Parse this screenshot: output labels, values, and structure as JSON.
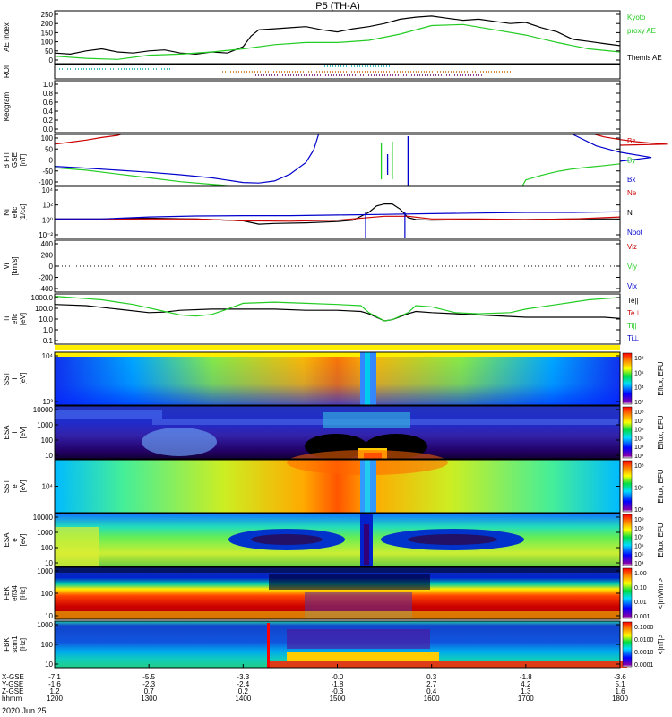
{
  "title": "P5 (TH-A)",
  "date_label": "2020 Jun 25",
  "colors": {
    "black": "#000000",
    "green": "#22cc22",
    "red": "#cc0000",
    "blue": "#0000cc"
  },
  "time_axis": {
    "row_labels": [
      "X-GSE",
      "Y-GSE",
      "Z-GSE",
      "hhmm"
    ],
    "ticks": [
      {
        "t": 1200,
        "values": [
          "-7.1",
          "-1.6",
          "1.2",
          "1200"
        ]
      },
      {
        "t": 1300,
        "values": [
          "-5.5",
          "-2.3",
          "0.7",
          "1300"
        ]
      },
      {
        "t": 1400,
        "values": [
          "-3.3",
          "-2.4",
          "0.2",
          "1400"
        ]
      },
      {
        "t": 1500,
        "values": [
          "-0.0",
          "-1.8",
          "-0.3",
          "1500"
        ]
      },
      {
        "t": 1600,
        "values": [
          "0.3",
          "2.7",
          "0.4",
          "1600"
        ]
      },
      {
        "t": 1700,
        "values": [
          "-1.8",
          "4.2",
          "1.3",
          "1700"
        ]
      },
      {
        "t": 1800,
        "values": [
          "-3.6",
          "5.1",
          "1.6",
          "1800"
        ]
      }
    ]
  },
  "panels": [
    {
      "id": "ae",
      "ylabel": [
        "AE Index"
      ],
      "ticks": [
        "250",
        "200",
        "150",
        "100",
        "50",
        "0"
      ],
      "legend": [
        {
          "text": "Kyoto",
          "color": "green"
        },
        {
          "text": "proxy AE",
          "color": "green"
        },
        {
          "text": ""
        },
        {
          "text": "Themis AE",
          "color": "black"
        }
      ]
    },
    {
      "id": "roi",
      "ylabel": [
        "ROI"
      ],
      "ticks": [],
      "legend": []
    },
    {
      "id": "keogram",
      "ylabel": [
        "Keogram"
      ],
      "ticks": [
        "1.0",
        "0.8",
        "0.6",
        "0.4",
        "0.2",
        "0.0"
      ],
      "legend": []
    },
    {
      "id": "bfit",
      "ylabel": [
        "B FIT",
        "GSE",
        "[nT]"
      ],
      "ticks": [
        "100",
        "50",
        "0",
        "-50",
        "-100"
      ],
      "legend": [
        {
          "text": "Bz",
          "color": "red"
        },
        {
          "text": "By",
          "color": "green"
        },
        {
          "text": "Bx",
          "color": "blue"
        }
      ]
    },
    {
      "id": "ni",
      "ylabel": [
        "Ni",
        "eflc",
        "[1/cc]"
      ],
      "ticks": [
        "10⁴",
        "10²",
        "10⁰",
        "10⁻²"
      ],
      "legend": [
        {
          "text": "Ne",
          "color": "red"
        },
        {
          "text": "Ni",
          "color": "black"
        },
        {
          "text": "Npot",
          "color": "blue"
        }
      ]
    },
    {
      "id": "vi",
      "ylabel": [
        "Vi",
        "[km/s]"
      ],
      "ticks": [
        "400",
        "200",
        "0",
        "-200",
        "-400"
      ],
      "legend": [
        {
          "text": "Viz",
          "color": "red"
        },
        {
          "text": "Viy",
          "color": "green"
        },
        {
          "text": "Vix",
          "color": "blue"
        }
      ]
    },
    {
      "id": "ti",
      "ylabel": [
        "Ti",
        "eflc",
        "[eV]"
      ],
      "ticks": [
        "1000.0",
        "100.0",
        "10.0",
        "1.0",
        "0.1"
      ],
      "legend": [
        {
          "text": "Te||",
          "color": "black"
        },
        {
          "text": "Te⊥",
          "color": "red"
        },
        {
          "text": "Ti||",
          "color": "green"
        },
        {
          "text": "Ti⊥",
          "color": "blue"
        }
      ]
    },
    {
      "id": "sst_i",
      "ylabel": [
        "SST",
        "i",
        "[eV]"
      ],
      "ticks": [
        "10⁴",
        "10³"
      ],
      "cb_label": "Eflux, EFU",
      "cb_ticks": [
        "10⁸",
        "10⁶",
        "10⁴",
        "10²"
      ]
    },
    {
      "id": "esa_i",
      "ylabel": [
        "ESA",
        "i",
        "[eV]"
      ],
      "ticks": [
        "10000",
        "1000",
        "100",
        "10"
      ],
      "cb_label": "Eflux, EFU",
      "cb_ticks": [
        "10⁸",
        "10⁷",
        "10⁶",
        "10⁵",
        "10⁴",
        "10³"
      ]
    },
    {
      "id": "sst_e",
      "ylabel": [
        "SST",
        "e",
        "[eV]"
      ],
      "ticks": [
        "10⁴"
      ],
      "cb_label": "Eflux, EFU",
      "cb_ticks": [
        "10⁸",
        "10⁶",
        "10⁴"
      ]
    },
    {
      "id": "esa_e",
      "ylabel": [
        "ESA",
        "e",
        "[eV]"
      ],
      "ticks": [
        "10000",
        "1000",
        "100",
        "10"
      ],
      "cb_label": "Eflux, EFU",
      "cb_ticks": [
        "10⁹",
        "10⁸",
        "10⁷",
        "10⁶",
        "10⁵",
        "10⁴"
      ]
    },
    {
      "id": "fbk_e",
      "ylabel": [
        "FBK",
        "eff34",
        "[Hz]"
      ],
      "ticks": [
        "1000",
        "100",
        "10"
      ],
      "cb_label": "<|mV/m|>",
      "cb_ticks": [
        "1.00",
        "0.10",
        "0.01",
        "0.001"
      ]
    },
    {
      "id": "fbk_b",
      "ylabel": [
        "FBK",
        "scm1",
        "[Hz]"
      ],
      "ticks": [
        "1000",
        "100",
        "10"
      ],
      "cb_label": "<|nT|>",
      "cb_ticks": [
        "0.1000",
        "0.0100",
        "0.0010",
        "0.0001"
      ]
    }
  ],
  "chart_data": {
    "type": "line",
    "title": "P5 (TH-A)",
    "x_unit": "hhmm (UT, 2020 Jun 25)",
    "xlim": [
      1200,
      1800
    ],
    "series": [
      {
        "panel": "ae",
        "name": "Themis AE",
        "color": "black",
        "ylim": [
          0,
          250
        ],
        "x": [
          1200,
          1210,
          1220,
          1230,
          1240,
          1250,
          1300,
          1310,
          1320,
          1330,
          1340,
          1350,
          1400,
          1405,
          1410,
          1420,
          1430,
          1440,
          1450,
          1500,
          1510,
          1520,
          1530,
          1540,
          1550,
          1600,
          1610,
          1620,
          1630,
          1640,
          1650,
          1700,
          1710,
          1720,
          1730,
          1740,
          1750,
          1800
        ],
        "y": [
          50,
          45,
          60,
          70,
          55,
          50,
          60,
          65,
          50,
          45,
          55,
          50,
          80,
          130,
          160,
          165,
          170,
          175,
          160,
          150,
          165,
          175,
          190,
          210,
          220,
          225,
          215,
          205,
          210,
          200,
          190,
          195,
          170,
          150,
          115,
          105,
          95,
          85
        ]
      },
      {
        "panel": "ae",
        "name": "Kyoto proxy AE",
        "color": "green",
        "ylim": [
          0,
          250
        ],
        "x": [
          1200,
          1220,
          1240,
          1300,
          1320,
          1340,
          1400,
          1420,
          1440,
          1500,
          1520,
          1540,
          1600,
          1620,
          1640,
          1700,
          1720,
          1740,
          1800
        ],
        "y": [
          35,
          25,
          20,
          40,
          45,
          55,
          70,
          90,
          100,
          100,
          110,
          140,
          180,
          185,
          160,
          135,
          100,
          70,
          55
        ]
      },
      {
        "panel": "bfit",
        "name": "Bz",
        "color": "red",
        "ylim": [
          -100,
          100
        ],
        "x": [
          1200,
          1210,
          1220,
          1230,
          1240,
          1242
        ],
        "y": [
          62,
          70,
          78,
          88,
          96,
          100
        ]
      },
      {
        "panel": "bfit",
        "name": "Bz",
        "color": "red",
        "ylim": [
          -100,
          100
        ],
        "x": [
          1744,
          1750,
          1760,
          1770,
          1780,
          1790,
          1800
        ],
        "y": [
          100,
          90,
          80,
          72,
          66,
          62,
          58
        ]
      },
      {
        "panel": "bfit",
        "name": "By",
        "color": "green",
        "ylim": [
          -100,
          100
        ],
        "x": [
          1200,
          1220,
          1240,
          1300,
          1320,
          1340,
          1350
        ],
        "y": [
          -30,
          -40,
          -55,
          -70,
          -85,
          -95,
          -100
        ]
      },
      {
        "panel": "bfit",
        "name": "By",
        "color": "green",
        "ylim": [
          -100,
          100
        ],
        "x": [
          1658,
          1700,
          1710,
          1720,
          1730,
          1740,
          1750,
          1800
        ],
        "y": [
          -100,
          -78,
          -60,
          -45,
          -35,
          -28,
          -22,
          -15
        ]
      },
      {
        "panel": "bfit",
        "name": "Bx",
        "color": "blue",
        "ylim": [
          -100,
          100
        ],
        "x": [
          1200,
          1220,
          1240,
          1300,
          1320,
          1340,
          1400,
          1410,
          1420,
          1430,
          1440,
          1445,
          1448
        ],
        "y": [
          -25,
          -32,
          -40,
          -48,
          -58,
          -70,
          -88,
          -90,
          -82,
          -55,
          -10,
          40,
          100
        ]
      },
      {
        "panel": "bfit",
        "name": "Bx",
        "color": "blue",
        "ylim": [
          -100,
          100
        ],
        "x": [
          1730,
          1745,
          1760,
          1780,
          1800
        ],
        "y": [
          100,
          55,
          30,
          10,
          -5
        ]
      },
      {
        "panel": "ni",
        "name": "Ni",
        "color": "black",
        "ylim": [
          -3,
          5
        ],
        "x": [
          1200,
          1230,
          1300,
          1330,
          1400,
          1410,
          1420,
          1440,
          1500,
          1510,
          1520,
          1525,
          1530,
          1535,
          1540,
          1545,
          1550,
          1600,
          1630,
          1700,
          1730,
          1800
        ],
        "y": [
          0,
          0,
          0.1,
          0,
          -0.3,
          -0.8,
          -0.7,
          -0.6,
          -0.4,
          -0.2,
          1,
          2,
          2.3,
          2.3,
          1.5,
          0.2,
          -0.1,
          -0.2,
          -0.1,
          -0.1,
          0,
          0
        ]
      },
      {
        "panel": "ni",
        "name": "Ne",
        "color": "red",
        "ylim": [
          -3,
          5
        ],
        "x": [
          1200,
          1230,
          1300,
          1330,
          1400,
          1430,
          1500,
          1530,
          1545,
          1600,
          1630,
          1700,
          1730,
          1800
        ],
        "y": [
          -0.1,
          -0.05,
          0,
          0,
          -0.3,
          -0.35,
          -0.2,
          0.4,
          0.4,
          0,
          0,
          -0.1,
          0,
          0.3
        ]
      },
      {
        "panel": "ni",
        "name": "Npot",
        "color": "blue",
        "ylim": [
          -3,
          5
        ],
        "x": [
          1200,
          1230,
          1300,
          1330,
          1400,
          1430,
          1500,
          1530,
          1600,
          1630,
          1700,
          1730,
          1800
        ],
        "y": [
          0,
          0,
          0.3,
          0.45,
          0.5,
          0.5,
          0.6,
          0.7,
          0.8,
          0.9,
          1,
          1,
          1.1
        ]
      },
      {
        "panel": "ti",
        "name": "Te||",
        "color": "black",
        "ylim": [
          -1,
          3.3
        ],
        "x": [
          1200,
          1220,
          1240,
          1300,
          1310,
          1320,
          1340,
          1400,
          1420,
          1440,
          1500,
          1515,
          1520,
          1530,
          1535,
          1545,
          1550,
          1600,
          1630,
          1700,
          1730,
          1750,
          1800
        ],
        "y": [
          2.4,
          2.3,
          2,
          1.7,
          1.75,
          1.9,
          2,
          2,
          2,
          1.9,
          1.9,
          1.8,
          1.6,
          1,
          1.1,
          1.6,
          1.8,
          1.7,
          1.5,
          1.3,
          1.3,
          1.3,
          1.2
        ]
      },
      {
        "panel": "ti",
        "name": "Ti||",
        "color": "green",
        "ylim": [
          -1,
          3.3
        ],
        "x": [
          1200,
          1210,
          1220,
          1230,
          1240,
          1250,
          1300,
          1310,
          1320,
          1330,
          1340,
          1350,
          1400,
          1420,
          1440,
          1500,
          1515,
          1520,
          1530,
          1535,
          1545,
          1550,
          1600,
          1615,
          1630,
          1650,
          1700,
          1720,
          1740,
          1800
        ],
        "y": [
          3.1,
          3,
          2.9,
          2.8,
          2.6,
          2.4,
          2.1,
          1.8,
          1.5,
          1.4,
          1.55,
          2,
          2.5,
          2.6,
          2.5,
          2.4,
          2.3,
          1.7,
          1,
          1.1,
          1.7,
          2.3,
          2.2,
          1.7,
          1.6,
          1.7,
          2,
          2.4,
          2.8,
          3
        ]
      }
    ]
  }
}
